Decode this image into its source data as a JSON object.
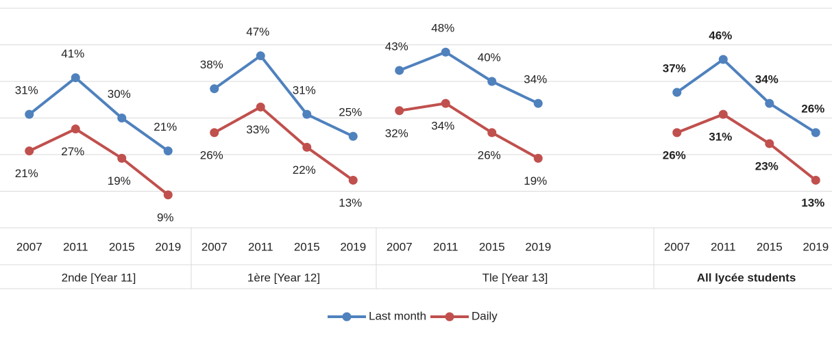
{
  "chart_data": {
    "type": "line",
    "groups": [
      {
        "label": "2nde [Year 11]",
        "categories": [
          "2007",
          "2011",
          "2015",
          "2019"
        ]
      },
      {
        "label": "1ère [Year 12]",
        "categories": [
          "2007",
          "2011",
          "2015",
          "2019"
        ]
      },
      {
        "label": "Tle [Year 13]",
        "categories": [
          "2007",
          "2011",
          "2015",
          "2019",
          null,
          null
        ]
      },
      {
        "label": "All lycée students",
        "categories": [
          "2007",
          "2011",
          "2015",
          "2019"
        ]
      }
    ],
    "series": [
      {
        "name": "Last month",
        "color": "#4f81bd",
        "values": [
          31,
          41,
          30,
          21,
          38,
          47,
          31,
          25,
          43,
          48,
          40,
          34,
          null,
          null,
          37,
          46,
          34,
          26
        ],
        "value_labels": [
          "31%",
          "41%",
          "30%",
          "21%",
          "38%",
          "47%",
          "31%",
          "25%",
          "43%",
          "48%",
          "40%",
          "34%",
          null,
          null,
          "37%",
          "46%",
          "34%",
          "26%"
        ]
      },
      {
        "name": "Daily",
        "color": "#c0504d",
        "values": [
          21,
          27,
          19,
          9,
          26,
          33,
          22,
          13,
          32,
          34,
          26,
          19,
          null,
          null,
          26,
          31,
          23,
          13
        ],
        "value_labels": [
          "21%",
          "27%",
          "19%",
          "9%",
          "26%",
          "33%",
          "22%",
          "13%",
          "32%",
          "34%",
          "26%",
          "19%",
          null,
          null,
          "26%",
          "31%",
          "23%",
          "13%"
        ]
      }
    ],
    "ylim": [
      0,
      60
    ],
    "yticks": [
      0,
      10,
      20,
      30,
      40,
      50,
      60
    ],
    "grid": true
  }
}
